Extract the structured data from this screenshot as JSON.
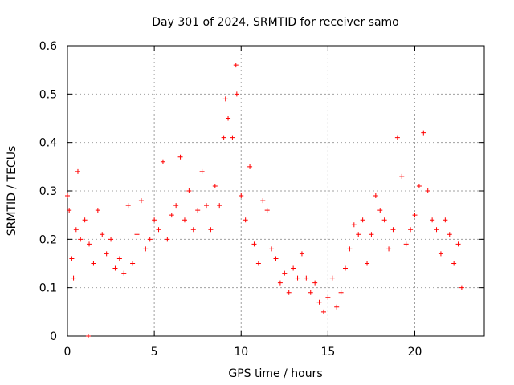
{
  "chart_data": {
    "type": "scatter",
    "title": "Day 301 of 2024, SRMTID for receiver samo",
    "xlabel": "GPS time / hours",
    "ylabel": "SRMTID / TECUs",
    "xlim": [
      0,
      24
    ],
    "ylim": [
      0,
      0.6
    ],
    "xticks": [
      0,
      5,
      10,
      15,
      20
    ],
    "yticks": [
      0,
      0.1,
      0.2,
      0.3,
      0.4,
      0.5,
      0.6
    ],
    "x_tick_labels": [
      "0",
      "5",
      "10",
      "15",
      "20"
    ],
    "y_tick_labels": [
      "0",
      "0.1",
      "0.2",
      "0.3",
      "0.4",
      "0.5",
      "0.6"
    ],
    "grid": true,
    "marker": "+",
    "color": "#ff0000",
    "sample_interval_hours": 0.25,
    "series": [
      {
        "name": "SRMTID",
        "points": [
          [
            0.0,
            0.29
          ],
          [
            0.1,
            0.26
          ],
          [
            0.25,
            0.16
          ],
          [
            0.35,
            0.12
          ],
          [
            0.5,
            0.22
          ],
          [
            0.6,
            0.34
          ],
          [
            0.75,
            0.2
          ],
          [
            1.0,
            0.24
          ],
          [
            1.2,
            0.0
          ],
          [
            1.25,
            0.19
          ],
          [
            1.5,
            0.15
          ],
          [
            1.75,
            0.26
          ],
          [
            2.0,
            0.21
          ],
          [
            2.25,
            0.17
          ],
          [
            2.5,
            0.2
          ],
          [
            2.75,
            0.14
          ],
          [
            3.0,
            0.16
          ],
          [
            3.25,
            0.13
          ],
          [
            3.5,
            0.27
          ],
          [
            3.75,
            0.15
          ],
          [
            4.0,
            0.21
          ],
          [
            4.25,
            0.28
          ],
          [
            4.5,
            0.18
          ],
          [
            4.75,
            0.2
          ],
          [
            5.0,
            0.24
          ],
          [
            5.25,
            0.22
          ],
          [
            5.5,
            0.36
          ],
          [
            5.75,
            0.2
          ],
          [
            6.0,
            0.25
          ],
          [
            6.25,
            0.27
          ],
          [
            6.5,
            0.37
          ],
          [
            6.75,
            0.24
          ],
          [
            7.0,
            0.3
          ],
          [
            7.25,
            0.22
          ],
          [
            7.5,
            0.26
          ],
          [
            7.75,
            0.34
          ],
          [
            8.0,
            0.27
          ],
          [
            8.25,
            0.22
          ],
          [
            8.5,
            0.31
          ],
          [
            8.75,
            0.27
          ],
          [
            9.0,
            0.41
          ],
          [
            9.1,
            0.49
          ],
          [
            9.25,
            0.45
          ],
          [
            9.5,
            0.41
          ],
          [
            9.7,
            0.56
          ],
          [
            9.75,
            0.5
          ],
          [
            10.0,
            0.29
          ],
          [
            10.25,
            0.24
          ],
          [
            10.5,
            0.35
          ],
          [
            10.75,
            0.19
          ],
          [
            11.0,
            0.15
          ],
          [
            11.25,
            0.28
          ],
          [
            11.5,
            0.26
          ],
          [
            11.75,
            0.18
          ],
          [
            12.0,
            0.16
          ],
          [
            12.25,
            0.11
          ],
          [
            12.5,
            0.13
          ],
          [
            12.75,
            0.09
          ],
          [
            13.0,
            0.14
          ],
          [
            13.25,
            0.12
          ],
          [
            13.5,
            0.17
          ],
          [
            13.75,
            0.12
          ],
          [
            14.0,
            0.09
          ],
          [
            14.25,
            0.11
          ],
          [
            14.5,
            0.07
          ],
          [
            14.75,
            0.05
          ],
          [
            15.0,
            0.08
          ],
          [
            15.25,
            0.12
          ],
          [
            15.5,
            0.06
          ],
          [
            15.75,
            0.09
          ],
          [
            16.0,
            0.14
          ],
          [
            16.25,
            0.18
          ],
          [
            16.5,
            0.23
          ],
          [
            16.75,
            0.21
          ],
          [
            17.0,
            0.24
          ],
          [
            17.25,
            0.15
          ],
          [
            17.5,
            0.21
          ],
          [
            17.75,
            0.29
          ],
          [
            18.0,
            0.26
          ],
          [
            18.25,
            0.24
          ],
          [
            18.5,
            0.18
          ],
          [
            18.75,
            0.22
          ],
          [
            19.0,
            0.41
          ],
          [
            19.25,
            0.33
          ],
          [
            19.5,
            0.19
          ],
          [
            19.75,
            0.22
          ],
          [
            20.0,
            0.25
          ],
          [
            20.25,
            0.31
          ],
          [
            20.5,
            0.42
          ],
          [
            20.75,
            0.3
          ],
          [
            21.0,
            0.24
          ],
          [
            21.25,
            0.22
          ],
          [
            21.5,
            0.17
          ],
          [
            21.75,
            0.24
          ],
          [
            22.0,
            0.21
          ],
          [
            22.25,
            0.15
          ],
          [
            22.5,
            0.19
          ],
          [
            22.7,
            0.1
          ]
        ]
      }
    ]
  }
}
